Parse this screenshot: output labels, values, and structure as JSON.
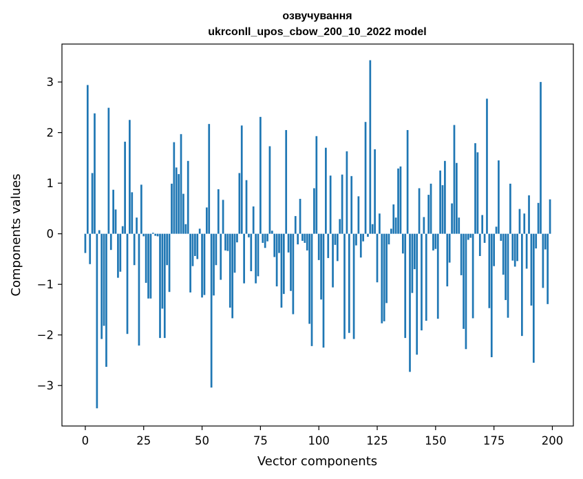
{
  "chart_data": {
    "type": "bar",
    "title_lines": [
      "озвучування",
      "ukrconll_upos_cbow_200_10_2022 model"
    ],
    "xlabel": "Vector components",
    "ylabel": "Components values",
    "xlim": [
      -10,
      209
    ],
    "ylim": [
      -3.8,
      3.75
    ],
    "xticks": [
      0,
      25,
      50,
      75,
      100,
      125,
      150,
      175,
      200
    ],
    "yticks": [
      -3,
      -2,
      -1,
      0,
      1,
      2,
      3
    ],
    "ytick_labels": [
      "−3",
      "−2",
      "−1",
      "0",
      "1",
      "2",
      "3"
    ],
    "grid": false,
    "bar_color": "#1f77b4",
    "values": [
      -0.38,
      2.94,
      -0.6,
      1.2,
      2.38,
      -3.45,
      0.07,
      -2.08,
      -1.82,
      -2.63,
      2.49,
      -0.32,
      0.87,
      0.48,
      -0.87,
      -0.75,
      0.15,
      1.82,
      -1.98,
      2.25,
      0.82,
      -0.62,
      0.32,
      -2.21,
      0.97,
      -0.05,
      -0.97,
      -1.28,
      -1.28,
      0.02,
      -0.04,
      -0.05,
      -2.06,
      -1.48,
      -2.06,
      -0.62,
      -1.15,
      0.99,
      1.81,
      1.31,
      1.18,
      1.97,
      0.79,
      0.19,
      1.44,
      -1.16,
      -0.64,
      -0.44,
      -0.5,
      0.1,
      -1.26,
      -1.21,
      0.52,
      2.17,
      -3.04,
      -1.22,
      -0.62,
      0.88,
      -0.91,
      0.67,
      -0.33,
      -0.34,
      -1.46,
      -1.67,
      -0.77,
      -0.17,
      1.2,
      2.14,
      -0.98,
      1.06,
      -0.07,
      -0.74,
      0.54,
      -0.98,
      -0.84,
      2.31,
      -0.18,
      -0.28,
      -0.15,
      1.73,
      0.06,
      -0.46,
      -1.04,
      -0.38,
      -1.46,
      -1.19,
      2.05,
      -0.37,
      -1.13,
      -1.59,
      0.35,
      -0.21,
      0.69,
      -0.14,
      -0.18,
      -0.33,
      -1.78,
      -2.22,
      0.9,
      1.93,
      -0.52,
      -1.3,
      -2.25,
      1.7,
      -0.48,
      1.15,
      -1.06,
      -0.22,
      -0.54,
      0.29,
      1.17,
      -2.08,
      1.63,
      -1.96,
      1.14,
      -2.08,
      -0.23,
      0.74,
      -0.47,
      -0.15,
      2.21,
      -0.06,
      3.43,
      0.19,
      1.67,
      -0.96,
      0.4,
      -1.77,
      -1.73,
      -1.37,
      -0.21,
      0.1,
      0.58,
      0.32,
      1.29,
      1.33,
      -0.39,
      -2.06,
      2.05,
      -2.73,
      -1.17,
      -0.7,
      -2.39,
      0.9,
      -1.91,
      0.33,
      -1.72,
      0.77,
      0.99,
      -0.33,
      -0.3,
      -1.68,
      1.25,
      0.96,
      1.44,
      -1.04,
      -0.57,
      0.6,
      2.15,
      1.4,
      0.32,
      -0.82,
      -1.88,
      -2.28,
      -0.12,
      -0.08,
      -1.67,
      1.79,
      1.61,
      -0.44,
      0.37,
      -0.18,
      2.67,
      -1.47,
      -2.44,
      -0.64,
      0.14,
      1.45,
      -0.14,
      -0.81,
      -1.31,
      -1.66,
      0.99,
      -0.53,
      -0.65,
      -0.54,
      0.49,
      -2.02,
      0.4,
      -0.69,
      0.76,
      -1.42,
      -2.55,
      -0.29,
      0.61,
      3.0,
      -1.07,
      -0.31,
      -1.39,
      0.68
    ]
  }
}
